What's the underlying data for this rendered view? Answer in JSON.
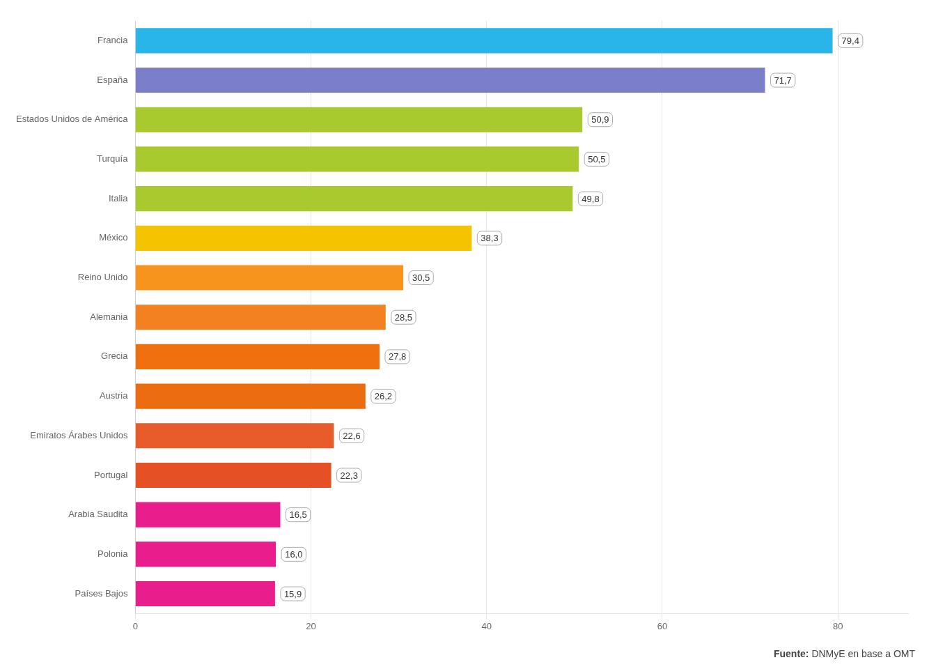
{
  "chart_data": {
    "type": "bar",
    "orientation": "horizontal",
    "categories": [
      "Francia",
      "España",
      "Estados Unidos de América",
      "Turquía",
      "Italia",
      "México",
      "Reino Unido",
      "Alemania",
      "Grecia",
      "Austria",
      "Emiratos Árabes Unidos",
      "Portugal",
      "Arabia Saudita",
      "Polonia",
      "Países Bajos"
    ],
    "values": [
      79.4,
      71.7,
      50.9,
      50.5,
      49.8,
      38.3,
      30.5,
      28.5,
      27.8,
      26.2,
      22.6,
      22.3,
      16.5,
      16.0,
      15.9
    ],
    "value_labels": [
      "79,4",
      "71,7",
      "50,9",
      "50,5",
      "49,8",
      "38,3",
      "30,5",
      "28,5",
      "27,8",
      "26,2",
      "22,6",
      "22,3",
      "16,5",
      "16,0",
      "15,9"
    ],
    "colors": [
      "#29B5E8",
      "#7B7EC8",
      "#A8CA2E",
      "#A8CA2E",
      "#A8CA2E",
      "#F5C400",
      "#F7941D",
      "#F4811F",
      "#F07010",
      "#EC6C10",
      "#E85B2A",
      "#E55124",
      "#E91E8C",
      "#E91E8C",
      "#E91E8C"
    ],
    "xlim": [
      0,
      88
    ],
    "xticks": [
      0,
      20,
      40,
      60,
      80
    ],
    "grid": true,
    "data_labels": true,
    "annotation": "Fuente: DNMyE en base a OMT"
  }
}
